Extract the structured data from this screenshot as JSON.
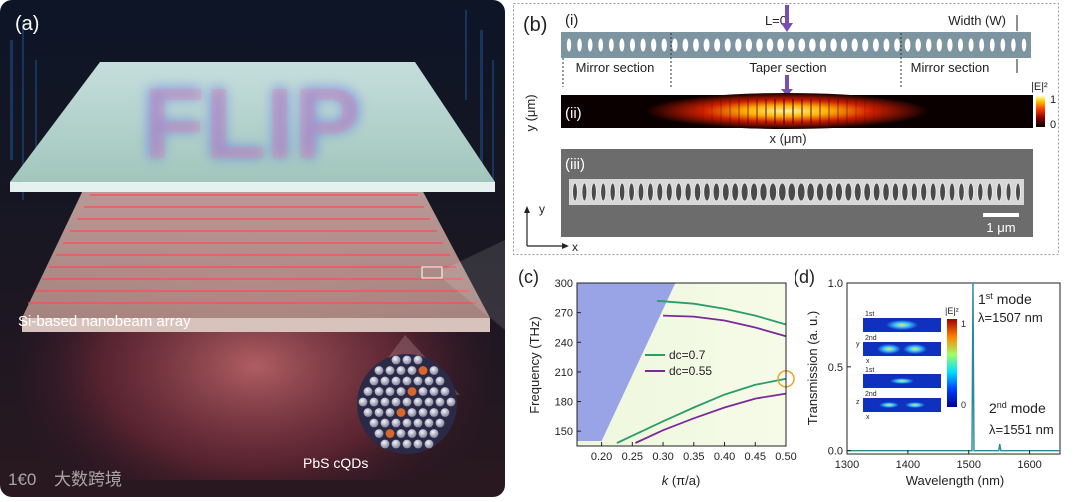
{
  "panel_a": {
    "label": "(a)",
    "overlay_text": "FLIP",
    "array_label": "Si-based nanobeam array",
    "qd_label": "PbS cQDs",
    "watermark": "大数跨境",
    "watermark_logo": "1€0"
  },
  "panel_b": {
    "label": "(b)",
    "sub_i": "(i)",
    "sub_ii": "(ii)",
    "sub_iii": "(iii)",
    "l0": "L=0",
    "width": "Width (W)",
    "mirror_left": "Mirror section",
    "taper": "Taper section",
    "mirror_right": "Mirror section",
    "y_axis": "y (μm)",
    "x_axis": "x (μm)",
    "colorbar_title": "|E|²",
    "colorbar_max": "1",
    "colorbar_min": "0",
    "scalebar": "1 μm",
    "axis_y": "y",
    "axis_x": "x"
  },
  "chart_data": [
    {
      "type": "line",
      "panel": "(c)",
      "xlabel": "k (π/a)",
      "ylabel": "Frequency (THz)",
      "xlim": [
        0.16,
        0.5
      ],
      "ylim": [
        135,
        300
      ],
      "xticks": [
        "0.20",
        "0.25",
        "0.30",
        "0.35",
        "0.40",
        "0.45",
        "0.50"
      ],
      "yticks": [
        "150",
        "180",
        "210",
        "240",
        "270",
        "300"
      ],
      "series": [
        {
          "name": "dc=0.7",
          "color": "#2a9d6b",
          "upper": {
            "x": [
              0.29,
              0.35,
              0.4,
              0.45,
              0.5
            ],
            "y": [
              282,
              279,
              274,
              267,
              258
            ]
          },
          "lower": {
            "x": [
              0.225,
              0.3,
              0.35,
              0.4,
              0.45,
              0.5
            ],
            "y": [
              138,
              160,
              174,
              187,
              197,
              203
            ]
          }
        },
        {
          "name": "dc=0.55",
          "color": "#7a2a9a",
          "upper": {
            "x": [
              0.3,
              0.35,
              0.4,
              0.45,
              0.5
            ],
            "y": [
              267,
              266,
              262,
              255,
              246
            ]
          },
          "lower": {
            "x": [
              0.255,
              0.3,
              0.35,
              0.4,
              0.45,
              0.5
            ],
            "y": [
              138,
              151,
              163,
              174,
              183,
              188
            ]
          }
        }
      ],
      "highlight": {
        "x": 0.5,
        "y": 203
      }
    },
    {
      "type": "line",
      "panel": "(d)",
      "xlabel": "Wavelength (nm)",
      "ylabel": "Transmission (a. u.)",
      "xlim": [
        1300,
        1650
      ],
      "ylim": [
        -0.02,
        1.0
      ],
      "xticks": [
        "1300",
        "1400",
        "1500",
        "1600"
      ],
      "yticks": [
        "0.0",
        "0.5",
        "1.0"
      ],
      "peaks": [
        {
          "x": 1507,
          "y": 1.0,
          "label_mode": "1st mode",
          "label_lambda": "λ=1507 nm"
        },
        {
          "x": 1551,
          "y": 0.04,
          "label_mode": "2nd mode",
          "label_lambda": "λ=1551 nm"
        }
      ],
      "inset": {
        "colorbar_title": "|E|²",
        "colorbar_max": "1",
        "colorbar_min": "0",
        "rows": [
          "1st",
          "2nd",
          "1st",
          "2nd"
        ],
        "axis_xy": [
          "y",
          "x"
        ],
        "axis_xz": [
          "z",
          "x"
        ]
      }
    }
  ],
  "panel_c_labels": {
    "label": "(c)",
    "legend": [
      "dc=0.7",
      "dc=0.55"
    ]
  },
  "panel_d_labels": {
    "label": "(d)",
    "mode1": "mode",
    "mode1_sup": "st",
    "mode1_num": "1",
    "mode1_lambda": "λ=1507 nm",
    "mode2": "mode",
    "mode2_sup": "nd",
    "mode2_num": "2",
    "mode2_lambda": "λ=1551 nm"
  }
}
